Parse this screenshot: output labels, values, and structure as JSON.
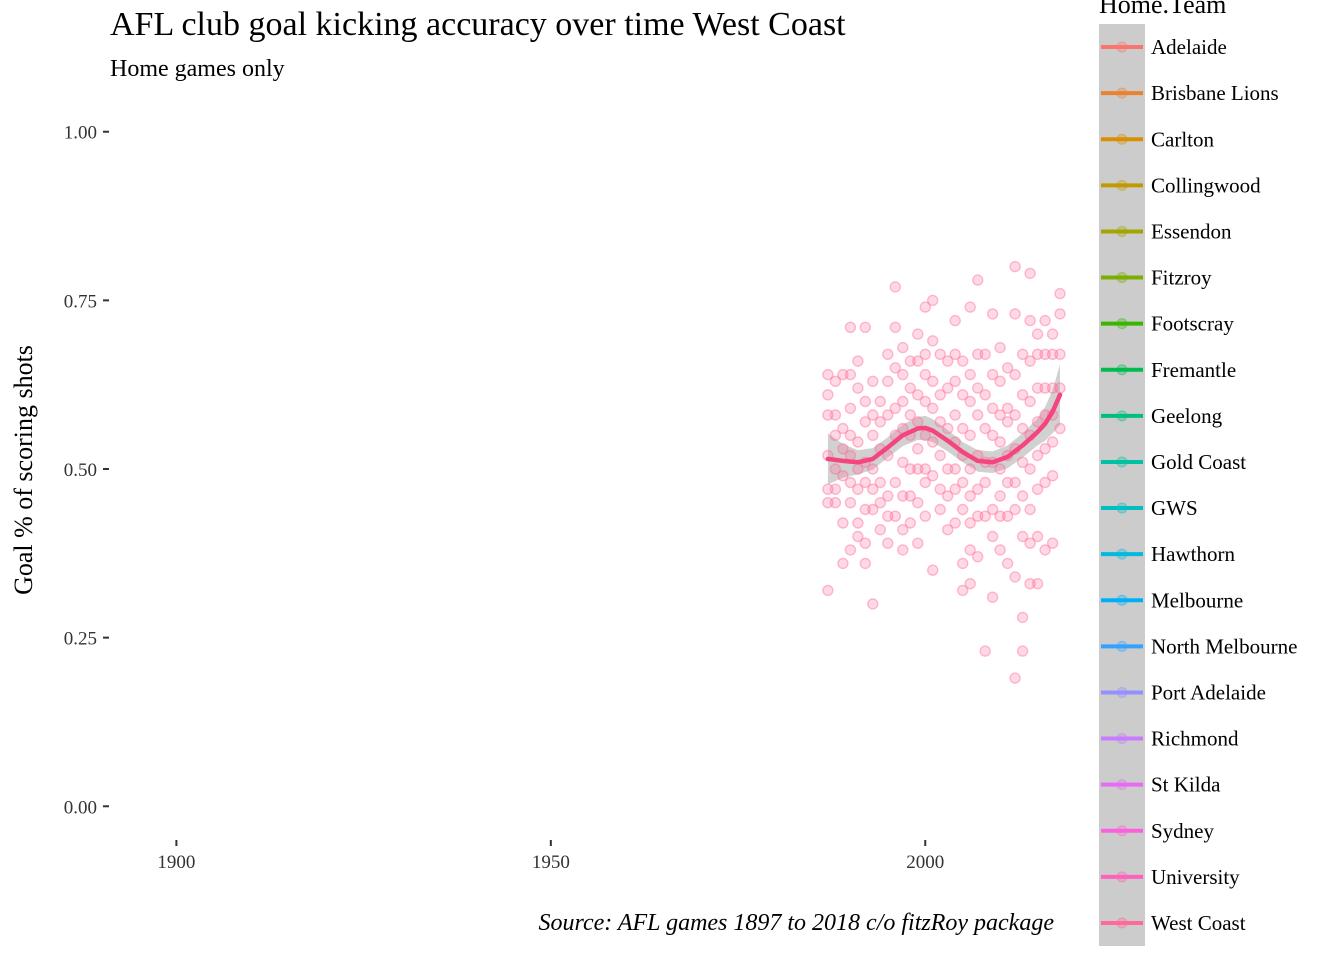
{
  "chart_data": {
    "type": "scatter",
    "title": "AFL club goal kicking accuracy over time West Coast",
    "subtitle": "Home games only",
    "caption": "Source: AFL games 1897 to 2018 c/o fitzRoy package",
    "xlabel": "",
    "ylabel": "Goal % of scoring shots",
    "xlim": [
      1891,
      2022
    ],
    "ylim": [
      -0.05,
      1.05
    ],
    "x_ticks": [
      1900,
      1950,
      2000
    ],
    "x_tick_labels": [
      "1900",
      "1950",
      "2000"
    ],
    "y_ticks": [
      0,
      0.25,
      0.5,
      0.75,
      1.0
    ],
    "y_tick_labels": [
      "0.00",
      "0.25",
      "0.50",
      "0.75",
      "1.00"
    ],
    "grid": false,
    "legend_title": "Home.Team",
    "legend_position": "right",
    "legend_items": [
      {
        "label": "Adelaide",
        "color": "#F8766D"
      },
      {
        "label": "Brisbane Lions",
        "color": "#EA8331"
      },
      {
        "label": "Carlton",
        "color": "#D89000"
      },
      {
        "label": "Collingwood",
        "color": "#C09B00"
      },
      {
        "label": "Essendon",
        "color": "#A3A500"
      },
      {
        "label": "Fitzroy",
        "color": "#7CAE00"
      },
      {
        "label": "Footscray",
        "color": "#39B600"
      },
      {
        "label": "Fremantle",
        "color": "#00BB4E"
      },
      {
        "label": "Geelong",
        "color": "#00BF7D"
      },
      {
        "label": "Gold Coast",
        "color": "#00C1A3"
      },
      {
        "label": "GWS",
        "color": "#00BFC4"
      },
      {
        "label": "Hawthorn",
        "color": "#00BAE0"
      },
      {
        "label": "Melbourne",
        "color": "#00B0F6"
      },
      {
        "label": "North Melbourne",
        "color": "#35A2FF"
      },
      {
        "label": "Port Adelaide",
        "color": "#9590FF"
      },
      {
        "label": "Richmond",
        "color": "#C77CFF"
      },
      {
        "label": "St Kilda",
        "color": "#E76BF3"
      },
      {
        "label": "Sydney",
        "color": "#FA62DB"
      },
      {
        "label": "University",
        "color": "#FF62BC"
      },
      {
        "label": "West Coast",
        "color": "#FF6A98"
      }
    ],
    "series": [
      {
        "name": "West Coast",
        "color": "#FF6A98",
        "trend_color": "#F5457E",
        "points": [
          [
            1987,
            0.64
          ],
          [
            1987,
            0.61
          ],
          [
            1987,
            0.58
          ],
          [
            1987,
            0.52
          ],
          [
            1987,
            0.47
          ],
          [
            1987,
            0.45
          ],
          [
            1987,
            0.32
          ],
          [
            1988,
            0.63
          ],
          [
            1988,
            0.58
          ],
          [
            1988,
            0.55
          ],
          [
            1988,
            0.5
          ],
          [
            1988,
            0.47
          ],
          [
            1988,
            0.45
          ],
          [
            1989,
            0.64
          ],
          [
            1989,
            0.56
          ],
          [
            1989,
            0.53
          ],
          [
            1989,
            0.49
          ],
          [
            1989,
            0.42
          ],
          [
            1989,
            0.36
          ],
          [
            1990,
            0.71
          ],
          [
            1990,
            0.64
          ],
          [
            1990,
            0.59
          ],
          [
            1990,
            0.55
          ],
          [
            1990,
            0.52
          ],
          [
            1990,
            0.48
          ],
          [
            1990,
            0.45
          ],
          [
            1990,
            0.38
          ],
          [
            1991,
            0.66
          ],
          [
            1991,
            0.62
          ],
          [
            1991,
            0.54
          ],
          [
            1991,
            0.5
          ],
          [
            1991,
            0.47
          ],
          [
            1991,
            0.42
          ],
          [
            1991,
            0.4
          ],
          [
            1992,
            0.71
          ],
          [
            1992,
            0.6
          ],
          [
            1992,
            0.57
          ],
          [
            1992,
            0.51
          ],
          [
            1992,
            0.48
          ],
          [
            1992,
            0.44
          ],
          [
            1992,
            0.39
          ],
          [
            1992,
            0.36
          ],
          [
            1993,
            0.63
          ],
          [
            1993,
            0.58
          ],
          [
            1993,
            0.55
          ],
          [
            1993,
            0.5
          ],
          [
            1993,
            0.47
          ],
          [
            1993,
            0.44
          ],
          [
            1993,
            0.3
          ],
          [
            1994,
            0.6
          ],
          [
            1994,
            0.57
          ],
          [
            1994,
            0.53
          ],
          [
            1994,
            0.48
          ],
          [
            1994,
            0.45
          ],
          [
            1994,
            0.41
          ],
          [
            1995,
            0.67
          ],
          [
            1995,
            0.63
          ],
          [
            1995,
            0.58
          ],
          [
            1995,
            0.52
          ],
          [
            1995,
            0.46
          ],
          [
            1995,
            0.43
          ],
          [
            1995,
            0.39
          ],
          [
            1996,
            0.77
          ],
          [
            1996,
            0.71
          ],
          [
            1996,
            0.65
          ],
          [
            1996,
            0.59
          ],
          [
            1996,
            0.55
          ],
          [
            1996,
            0.48
          ],
          [
            1996,
            0.43
          ],
          [
            1997,
            0.68
          ],
          [
            1997,
            0.64
          ],
          [
            1997,
            0.6
          ],
          [
            1997,
            0.56
          ],
          [
            1997,
            0.51
          ],
          [
            1997,
            0.46
          ],
          [
            1997,
            0.41
          ],
          [
            1997,
            0.38
          ],
          [
            1998,
            0.66
          ],
          [
            1998,
            0.62
          ],
          [
            1998,
            0.58
          ],
          [
            1998,
            0.55
          ],
          [
            1998,
            0.5
          ],
          [
            1998,
            0.46
          ],
          [
            1998,
            0.42
          ],
          [
            1999,
            0.7
          ],
          [
            1999,
            0.66
          ],
          [
            1999,
            0.61
          ],
          [
            1999,
            0.57
          ],
          [
            1999,
            0.53
          ],
          [
            1999,
            0.5
          ],
          [
            1999,
            0.45
          ],
          [
            1999,
            0.39
          ],
          [
            2000,
            0.74
          ],
          [
            2000,
            0.67
          ],
          [
            2000,
            0.64
          ],
          [
            2000,
            0.6
          ],
          [
            2000,
            0.55
          ],
          [
            2000,
            0.5
          ],
          [
            2000,
            0.48
          ],
          [
            2000,
            0.43
          ],
          [
            2001,
            0.75
          ],
          [
            2001,
            0.69
          ],
          [
            2001,
            0.63
          ],
          [
            2001,
            0.59
          ],
          [
            2001,
            0.54
          ],
          [
            2001,
            0.49
          ],
          [
            2001,
            0.35
          ],
          [
            2002,
            0.67
          ],
          [
            2002,
            0.61
          ],
          [
            2002,
            0.57
          ],
          [
            2002,
            0.52
          ],
          [
            2002,
            0.47
          ],
          [
            2002,
            0.44
          ],
          [
            2003,
            0.66
          ],
          [
            2003,
            0.62
          ],
          [
            2003,
            0.56
          ],
          [
            2003,
            0.5
          ],
          [
            2003,
            0.46
          ],
          [
            2003,
            0.41
          ],
          [
            2004,
            0.72
          ],
          [
            2004,
            0.67
          ],
          [
            2004,
            0.63
          ],
          [
            2004,
            0.58
          ],
          [
            2004,
            0.54
          ],
          [
            2004,
            0.5
          ],
          [
            2004,
            0.47
          ],
          [
            2004,
            0.42
          ],
          [
            2005,
            0.66
          ],
          [
            2005,
            0.61
          ],
          [
            2005,
            0.56
          ],
          [
            2005,
            0.52
          ],
          [
            2005,
            0.48
          ],
          [
            2005,
            0.44
          ],
          [
            2005,
            0.36
          ],
          [
            2005,
            0.32
          ],
          [
            2006,
            0.74
          ],
          [
            2006,
            0.64
          ],
          [
            2006,
            0.6
          ],
          [
            2006,
            0.55
          ],
          [
            2006,
            0.5
          ],
          [
            2006,
            0.46
          ],
          [
            2006,
            0.42
          ],
          [
            2006,
            0.38
          ],
          [
            2006,
            0.33
          ],
          [
            2007,
            0.78
          ],
          [
            2007,
            0.67
          ],
          [
            2007,
            0.62
          ],
          [
            2007,
            0.58
          ],
          [
            2007,
            0.52
          ],
          [
            2007,
            0.47
          ],
          [
            2007,
            0.43
          ],
          [
            2007,
            0.37
          ],
          [
            2008,
            0.67
          ],
          [
            2008,
            0.61
          ],
          [
            2008,
            0.56
          ],
          [
            2008,
            0.51
          ],
          [
            2008,
            0.48
          ],
          [
            2008,
            0.43
          ],
          [
            2008,
            0.23
          ],
          [
            2009,
            0.73
          ],
          [
            2009,
            0.64
          ],
          [
            2009,
            0.59
          ],
          [
            2009,
            0.55
          ],
          [
            2009,
            0.51
          ],
          [
            2009,
            0.44
          ],
          [
            2009,
            0.4
          ],
          [
            2009,
            0.31
          ],
          [
            2010,
            0.68
          ],
          [
            2010,
            0.63
          ],
          [
            2010,
            0.58
          ],
          [
            2010,
            0.54
          ],
          [
            2010,
            0.5
          ],
          [
            2010,
            0.46
          ],
          [
            2010,
            0.43
          ],
          [
            2010,
            0.38
          ],
          [
            2011,
            0.65
          ],
          [
            2011,
            0.59
          ],
          [
            2011,
            0.57
          ],
          [
            2011,
            0.52
          ],
          [
            2011,
            0.48
          ],
          [
            2011,
            0.43
          ],
          [
            2011,
            0.36
          ],
          [
            2012,
            0.8
          ],
          [
            2012,
            0.73
          ],
          [
            2012,
            0.64
          ],
          [
            2012,
            0.58
          ],
          [
            2012,
            0.53
          ],
          [
            2012,
            0.48
          ],
          [
            2012,
            0.44
          ],
          [
            2012,
            0.34
          ],
          [
            2012,
            0.19
          ],
          [
            2013,
            0.67
          ],
          [
            2013,
            0.61
          ],
          [
            2013,
            0.56
          ],
          [
            2013,
            0.51
          ],
          [
            2013,
            0.46
          ],
          [
            2013,
            0.4
          ],
          [
            2013,
            0.28
          ],
          [
            2013,
            0.23
          ],
          [
            2014,
            0.79
          ],
          [
            2014,
            0.72
          ],
          [
            2014,
            0.66
          ],
          [
            2014,
            0.6
          ],
          [
            2014,
            0.55
          ],
          [
            2014,
            0.5
          ],
          [
            2014,
            0.44
          ],
          [
            2014,
            0.39
          ],
          [
            2014,
            0.33
          ],
          [
            2015,
            0.7
          ],
          [
            2015,
            0.67
          ],
          [
            2015,
            0.62
          ],
          [
            2015,
            0.57
          ],
          [
            2015,
            0.52
          ],
          [
            2015,
            0.47
          ],
          [
            2015,
            0.4
          ],
          [
            2015,
            0.33
          ],
          [
            2016,
            0.72
          ],
          [
            2016,
            0.67
          ],
          [
            2016,
            0.62
          ],
          [
            2016,
            0.58
          ],
          [
            2016,
            0.53
          ],
          [
            2016,
            0.48
          ],
          [
            2016,
            0.38
          ],
          [
            2017,
            0.7
          ],
          [
            2017,
            0.67
          ],
          [
            2017,
            0.62
          ],
          [
            2017,
            0.58
          ],
          [
            2017,
            0.54
          ],
          [
            2017,
            0.49
          ],
          [
            2017,
            0.39
          ],
          [
            2018,
            0.76
          ],
          [
            2018,
            0.73
          ],
          [
            2018,
            0.67
          ],
          [
            2018,
            0.62
          ],
          [
            2018,
            0.56
          ]
        ],
        "trend": [
          [
            1987,
            0.515
          ],
          [
            1989,
            0.512
          ],
          [
            1991,
            0.51
          ],
          [
            1993,
            0.515
          ],
          [
            1995,
            0.532
          ],
          [
            1997,
            0.55
          ],
          [
            1999,
            0.56
          ],
          [
            2000,
            0.561
          ],
          [
            2001,
            0.557
          ],
          [
            2003,
            0.542
          ],
          [
            2005,
            0.525
          ],
          [
            2007,
            0.512
          ],
          [
            2009,
            0.51
          ],
          [
            2011,
            0.518
          ],
          [
            2013,
            0.535
          ],
          [
            2015,
            0.555
          ],
          [
            2016,
            0.567
          ],
          [
            2017,
            0.585
          ],
          [
            2018,
            0.61
          ]
        ],
        "band_width": [
          0.038,
          0.025,
          0.018,
          0.016,
          0.015,
          0.016,
          0.017,
          0.018,
          0.017,
          0.016,
          0.015,
          0.016,
          0.016,
          0.017,
          0.018,
          0.02,
          0.025,
          0.032,
          0.045
        ]
      }
    ]
  }
}
